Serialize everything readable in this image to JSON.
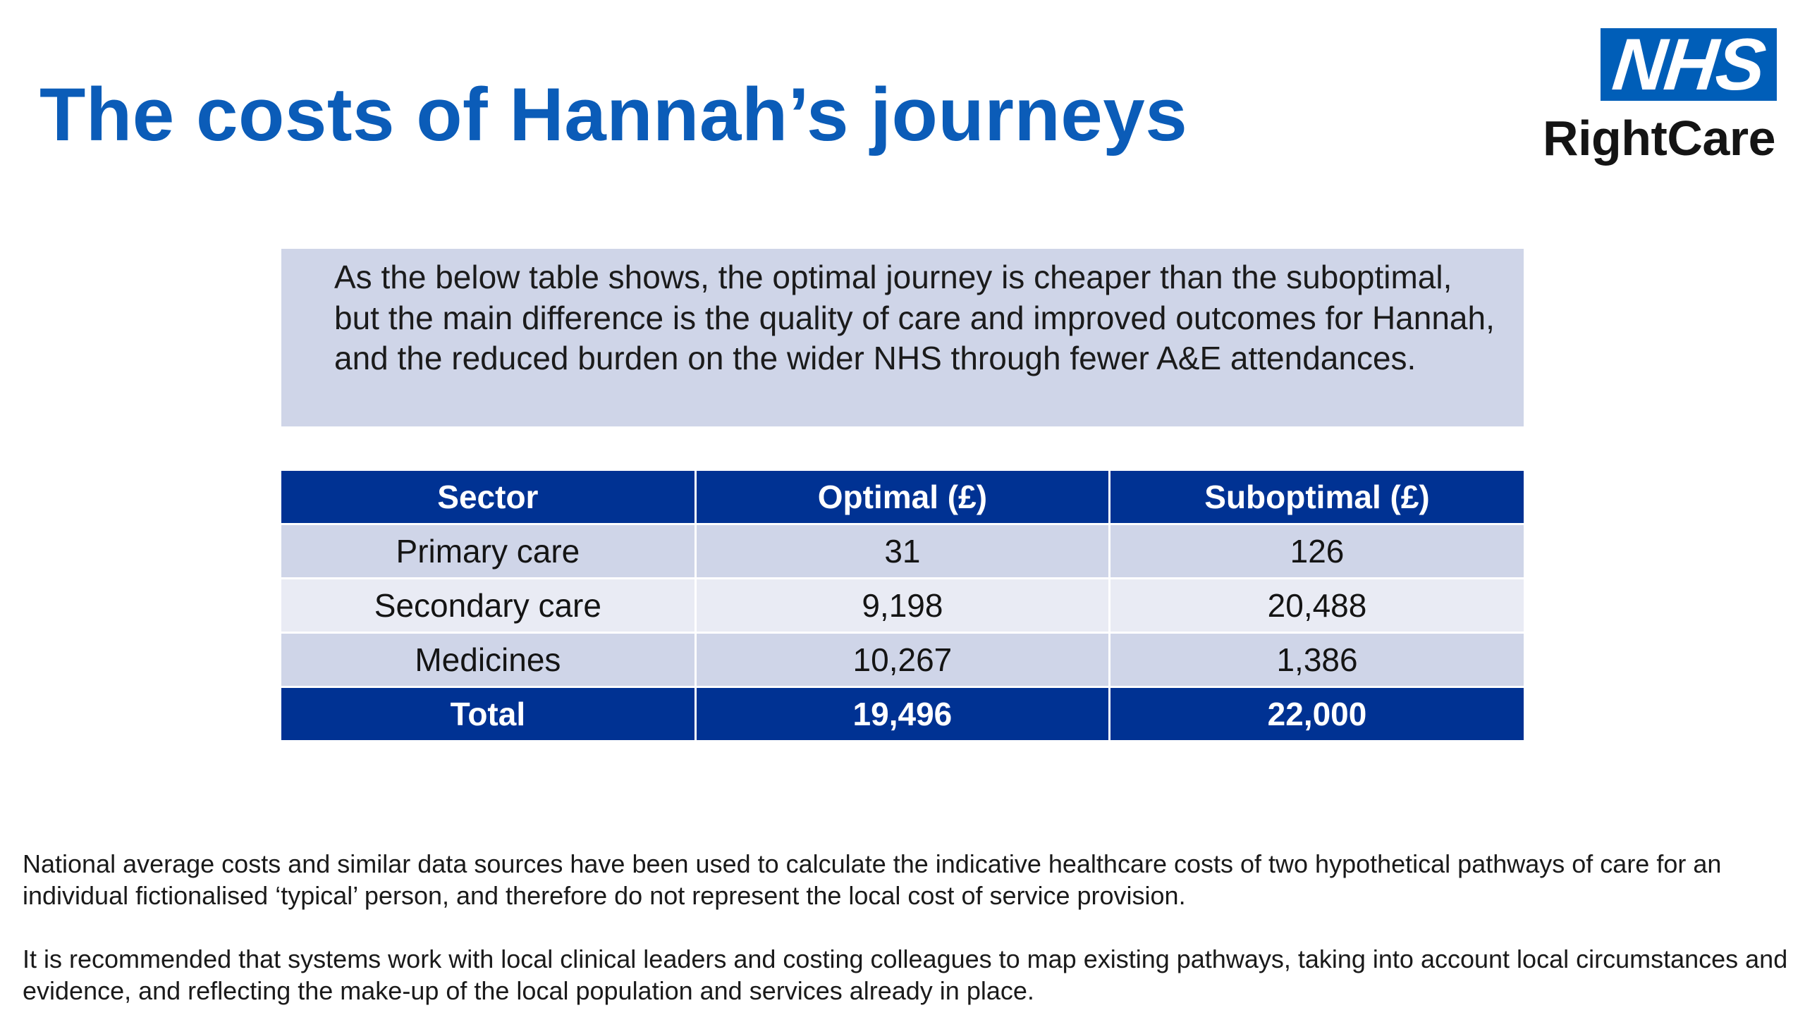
{
  "slide": {
    "title": "The costs of Hannah’s journeys",
    "logo": {
      "nhs": "NHS",
      "rightcare": "RightCare"
    },
    "intro": "As the below table shows, the optimal journey is cheaper than the suboptimal, but the main difference is the quality of care and improved outcomes for Hannah, and the reduced burden on the wider NHS through fewer A&E attendances.",
    "table": {
      "headers": [
        "Sector",
        "Optimal (£)",
        "Suboptimal (£)"
      ],
      "rows": [
        [
          "Primary care",
          "31",
          "126"
        ],
        [
          "Secondary care",
          "9,198",
          "20,488"
        ],
        [
          "Medicines",
          "10,267",
          "1,386"
        ]
      ],
      "total": [
        "Total",
        "19,496",
        "22,000"
      ]
    },
    "footnotes": [
      "National average costs and similar data sources have been used to calculate the indicative healthcare costs of two hypothetical pathways of care for an individual fictionalised ‘typical’ person, and therefore do not represent the local cost of service provision.",
      "It is recommended that systems work with local clinical leaders and costing colleagues to map existing pathways, taking into account local circumstances and evidence, and reflecting the make-up of the local population and services already in place."
    ],
    "colors": {
      "title": "#0b5cb8",
      "nhs_blue": "#005eb8",
      "table_header": "#003293",
      "row_light": "#cfd5e8",
      "row_lighter": "#e9ebf4"
    }
  }
}
